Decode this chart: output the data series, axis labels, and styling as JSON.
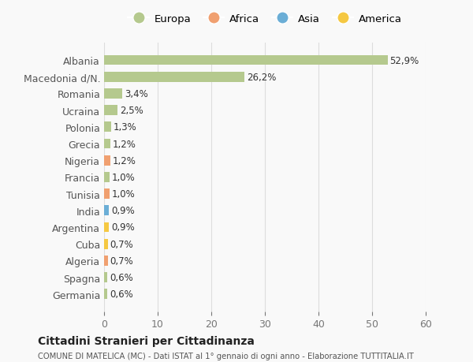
{
  "countries": [
    "Albania",
    "Macedonia d/N.",
    "Romania",
    "Ucraina",
    "Polonia",
    "Grecia",
    "Nigeria",
    "Francia",
    "Tunisia",
    "India",
    "Argentina",
    "Cuba",
    "Algeria",
    "Spagna",
    "Germania"
  ],
  "values": [
    52.9,
    26.2,
    3.4,
    2.5,
    1.3,
    1.2,
    1.2,
    1.0,
    1.0,
    0.9,
    0.9,
    0.7,
    0.7,
    0.6,
    0.6
  ],
  "labels": [
    "52,9%",
    "26,2%",
    "3,4%",
    "2,5%",
    "1,3%",
    "1,2%",
    "1,2%",
    "1,0%",
    "1,0%",
    "0,9%",
    "0,9%",
    "0,7%",
    "0,7%",
    "0,6%",
    "0,6%"
  ],
  "colors": [
    "#b5c98e",
    "#b5c98e",
    "#b5c98e",
    "#b5c98e",
    "#b5c98e",
    "#b5c98e",
    "#f0a070",
    "#b5c98e",
    "#f0a070",
    "#6baed6",
    "#f5c842",
    "#f5c842",
    "#f0a070",
    "#b5c98e",
    "#b5c98e"
  ],
  "legend_labels": [
    "Europa",
    "Africa",
    "Asia",
    "America"
  ],
  "legend_colors": [
    "#b5c98e",
    "#f0a070",
    "#6baed6",
    "#f5c842"
  ],
  "title": "Cittadini Stranieri per Cittadinanza",
  "subtitle": "COMUNE DI MATELICA (MC) - Dati ISTAT al 1° gennaio di ogni anno - Elaborazione TUTTITALIA.IT",
  "xlim": [
    0,
    60
  ],
  "xticks": [
    0,
    10,
    20,
    30,
    40,
    50,
    60
  ],
  "background_color": "#f9f9f9",
  "grid_color": "#dddddd"
}
